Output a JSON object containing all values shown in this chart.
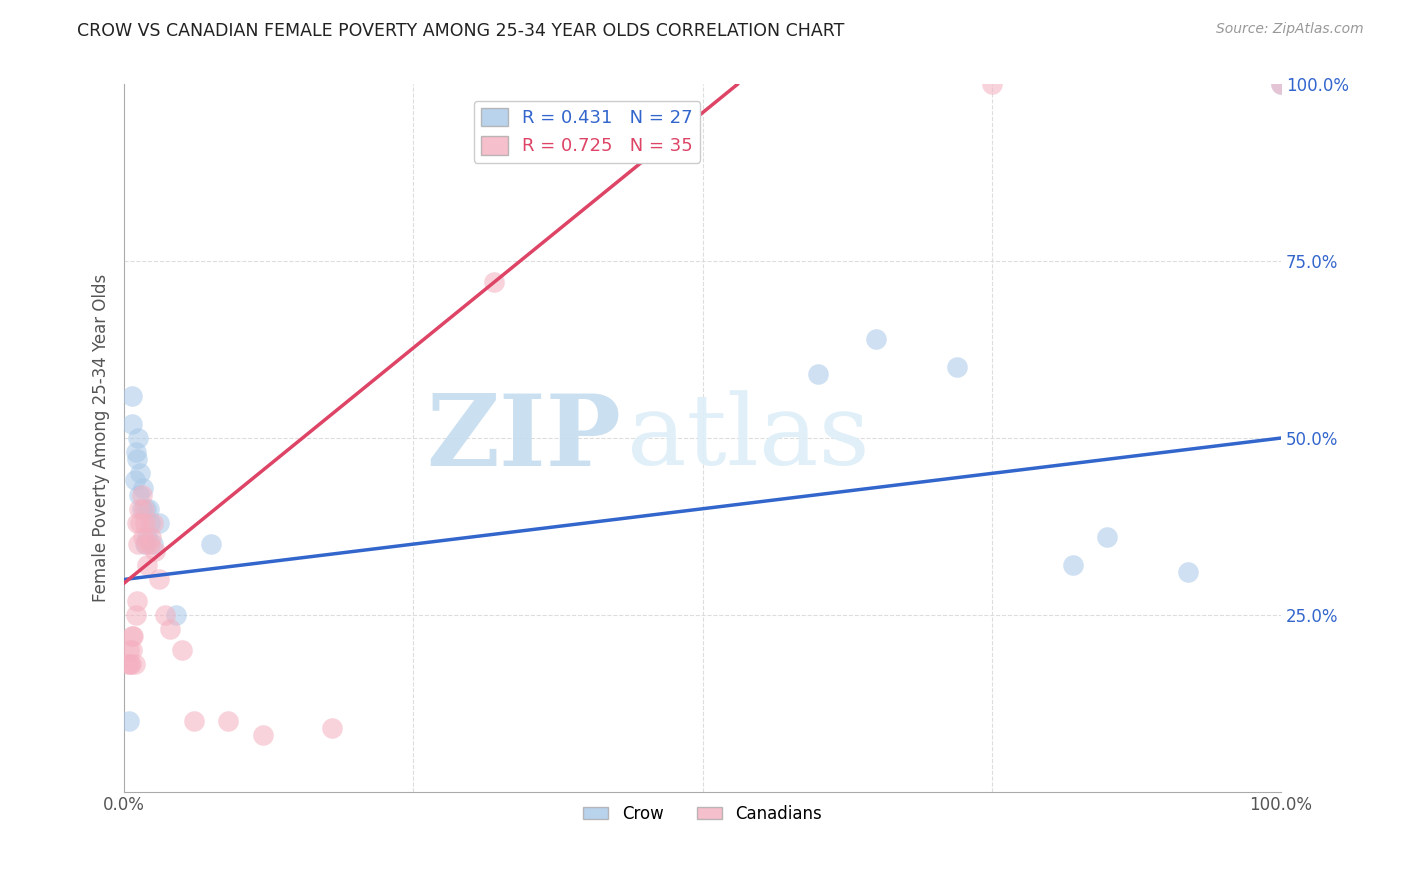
{
  "title": "CROW VS CANADIAN FEMALE POVERTY AMONG 25-34 YEAR OLDS CORRELATION CHART",
  "source": "Source: ZipAtlas.com",
  "ylabel": "Female Poverty Among 25-34 Year Olds",
  "crow_R": 0.431,
  "crow_N": 27,
  "canadian_R": 0.725,
  "canadian_N": 35,
  "crow_color": "#a8c8e8",
  "canadian_color": "#f4b0c0",
  "crow_line_color": "#3366cc",
  "canadian_line_color": "#dd4466",
  "watermark_zip": "ZIP",
  "watermark_atlas": "atlas",
  "crow_points_x": [
    0.004,
    0.007,
    0.007,
    0.009,
    0.01,
    0.011,
    0.012,
    0.013,
    0.014,
    0.015,
    0.016,
    0.018,
    0.019,
    0.02,
    0.021,
    0.022,
    0.025,
    0.03,
    0.045,
    0.075,
    0.6,
    0.65,
    0.72,
    0.82,
    0.85,
    0.92,
    1.0
  ],
  "crow_points_y": [
    0.1,
    0.56,
    0.52,
    0.44,
    0.48,
    0.47,
    0.5,
    0.42,
    0.45,
    0.4,
    0.43,
    0.35,
    0.4,
    0.36,
    0.4,
    0.38,
    0.35,
    0.38,
    0.25,
    0.35,
    0.59,
    0.64,
    0.6,
    0.32,
    0.36,
    0.31,
    1.0
  ],
  "canadian_points_x": [
    0.003,
    0.004,
    0.005,
    0.006,
    0.007,
    0.007,
    0.008,
    0.009,
    0.01,
    0.011,
    0.011,
    0.012,
    0.013,
    0.014,
    0.015,
    0.016,
    0.017,
    0.018,
    0.019,
    0.02,
    0.022,
    0.023,
    0.025,
    0.027,
    0.03,
    0.035,
    0.04,
    0.05,
    0.06,
    0.09,
    0.12,
    0.18,
    0.32,
    0.75,
    1.0
  ],
  "canadian_points_y": [
    0.18,
    0.2,
    0.18,
    0.18,
    0.2,
    0.22,
    0.22,
    0.18,
    0.25,
    0.27,
    0.38,
    0.35,
    0.4,
    0.38,
    0.42,
    0.36,
    0.4,
    0.38,
    0.35,
    0.32,
    0.35,
    0.36,
    0.38,
    0.34,
    0.3,
    0.25,
    0.23,
    0.2,
    0.1,
    0.1,
    0.08,
    0.09,
    0.72,
    1.0,
    1.0
  ],
  "crow_line": [
    0.0,
    1.0,
    0.3,
    0.5
  ],
  "canadian_line": [
    0.0,
    0.53,
    0.295,
    1.0
  ],
  "xlim": [
    0.0,
    1.0
  ],
  "ylim": [
    0.0,
    1.0
  ],
  "xtick_positions": [
    0.0,
    1.0
  ],
  "xtick_labels": [
    "0.0%",
    "100.0%"
  ],
  "ytick_positions_right": [
    0.25,
    0.5,
    0.75,
    1.0
  ],
  "ytick_labels_right": [
    "25.0%",
    "50.0%",
    "75.0%",
    "100.0%"
  ],
  "grid_color": "#dddddd",
  "background_color": "#ffffff",
  "title_color": "#222222",
  "source_color": "#999999",
  "ylabel_color": "#555555"
}
